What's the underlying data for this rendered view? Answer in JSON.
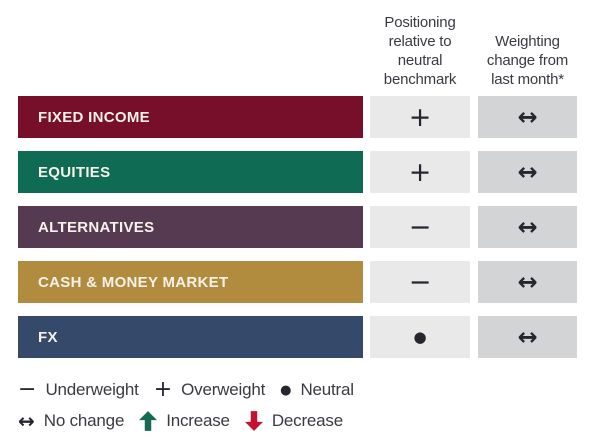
{
  "chart_data": {
    "type": "table",
    "columns": [
      "Positioning relative to neutral benchmark",
      "Weighting change from last month*"
    ],
    "rows": [
      {
        "label": "FIXED INCOME",
        "bar_color": "#770F2A",
        "positioning_symbol": "+",
        "positioning": "Overweight",
        "weighting_symbol": "↔",
        "weighting_change": "No change"
      },
      {
        "label": "EQUITIES",
        "bar_color": "#0F6B53",
        "positioning_symbol": "+",
        "positioning": "Overweight",
        "weighting_symbol": "↔",
        "weighting_change": "No change"
      },
      {
        "label": "ALTERNATIVES",
        "bar_color": "#553A52",
        "positioning_symbol": "−",
        "positioning": "Underweight",
        "weighting_symbol": "↔",
        "weighting_change": "No change"
      },
      {
        "label": "CASH & MONEY MARKET",
        "bar_color": "#B28C3E",
        "positioning_symbol": "−",
        "positioning": "Underweight",
        "weighting_symbol": "↔",
        "weighting_change": "No change"
      },
      {
        "label": "FX",
        "bar_color": "#35496B",
        "positioning_symbol": "●",
        "positioning": "Neutral",
        "weighting_symbol": "↔",
        "weighting_change": "No change"
      }
    ]
  },
  "legend": {
    "positioning_items": [
      {
        "symbol": "−",
        "label": "Underweight",
        "icon": "minus-icon",
        "color": "#26262E"
      },
      {
        "symbol": "+",
        "label": "Overweight",
        "icon": "plus-icon",
        "color": "#26262E"
      },
      {
        "symbol": "●",
        "label": "Neutral",
        "icon": "dot-icon",
        "color": "#26262E"
      }
    ],
    "change_items": [
      {
        "symbol": "↔",
        "label": "No change",
        "icon": "left-right-arrow-icon",
        "color": "#26262E"
      },
      {
        "symbol": "↑",
        "label": "Increase",
        "icon": "up-arrow-icon",
        "color": "#156B52"
      },
      {
        "symbol": "↓",
        "label": "Decrease",
        "icon": "down-arrow-icon",
        "color": "#C41230"
      }
    ]
  },
  "colors": {
    "background": "#FFFFFF",
    "header_text": "#3A3A42",
    "legend_text": "#3A3A42",
    "symbol": "#26262E",
    "row_label_text": "#F6F2E9",
    "positioning_cell_bg": "#E9E9EA",
    "weighting_cell_bg": "#D3D4D6",
    "increase": "#156B52",
    "decrease": "#C41230"
  }
}
